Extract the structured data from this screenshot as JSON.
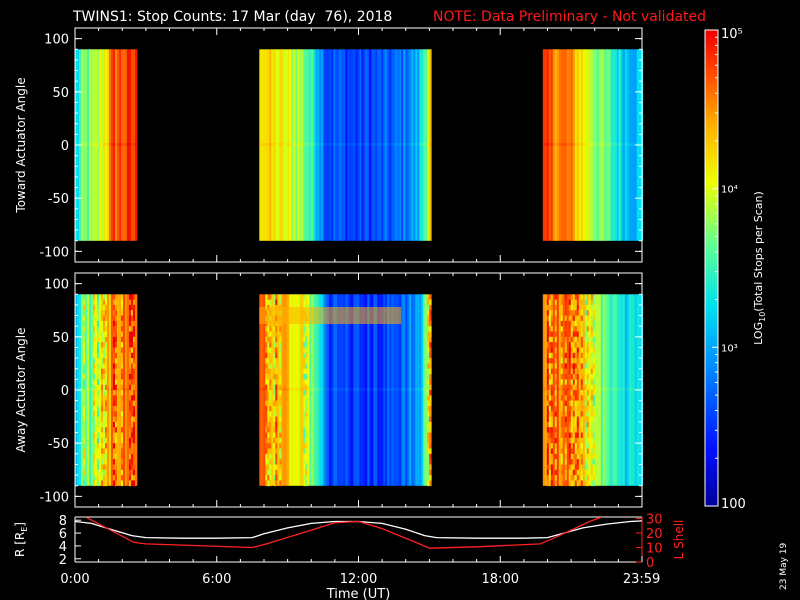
{
  "header": {
    "title": "TWINS1: Stop Counts: 17 Mar (day  76), 2018",
    "note": "NOTE: Data Preliminary - Not validated",
    "note_color": "#ff1a1a"
  },
  "stamp": "23 May 19",
  "colorbar": {
    "label_prefix": "LOG",
    "label_sub": "10",
    "label_suffix": "(Total Stops per Scan)",
    "ticks": [
      {
        "value": 100,
        "label": "100"
      },
      {
        "value": 1000,
        "label": "10³"
      },
      {
        "value": 10000,
        "label": "10⁴"
      },
      {
        "value": 100000,
        "label": "10⁵"
      }
    ],
    "range": [
      100,
      100000
    ],
    "scale": "log"
  },
  "chart_data": [
    {
      "type": "heatmap",
      "ylabel": "Toward Actuator Angle",
      "ylim": [
        -110,
        110
      ],
      "yticks": [
        100,
        50,
        0,
        -50,
        -100
      ],
      "xlim": [
        0,
        24
      ],
      "data_y_range": [
        -90,
        90
      ],
      "segments": [
        {
          "start": 0.0,
          "end": 2.6,
          "profile": [
            [
              0.0,
              0.4
            ],
            [
              0.3,
              0.55
            ],
            [
              0.8,
              0.58
            ],
            [
              1.3,
              0.75
            ],
            [
              1.6,
              0.9
            ],
            [
              2.6,
              0.92
            ]
          ]
        },
        {
          "start": 7.8,
          "end": 15.0,
          "profile": [
            [
              7.8,
              0.78
            ],
            [
              8.4,
              0.7
            ],
            [
              9.5,
              0.62
            ],
            [
              10.2,
              0.42
            ],
            [
              10.6,
              0.22
            ],
            [
              12.0,
              0.18
            ],
            [
              13.5,
              0.22
            ],
            [
              14.5,
              0.35
            ],
            [
              15.0,
              0.75
            ]
          ]
        },
        {
          "start": 19.8,
          "end": 24.0,
          "profile": [
            [
              19.8,
              0.88
            ],
            [
              20.8,
              0.85
            ],
            [
              21.5,
              0.7
            ],
            [
              22.3,
              0.55
            ],
            [
              23.2,
              0.4
            ],
            [
              24.0,
              0.38
            ]
          ]
        }
      ],
      "colorbar_label": "LOG10(Total Stops per Scan)"
    },
    {
      "type": "heatmap",
      "ylabel": "Away Actuator Angle",
      "ylim": [
        -110,
        110
      ],
      "yticks": [
        100,
        50,
        0,
        -50,
        -100
      ],
      "xlim": [
        0,
        24
      ],
      "data_y_range": [
        -90,
        90
      ],
      "segments": [
        {
          "start": 0.0,
          "end": 2.6,
          "profile": [
            [
              0.0,
              0.38
            ],
            [
              0.3,
              0.55
            ],
            [
              0.8,
              0.6
            ],
            [
              1.4,
              0.82
            ],
            [
              1.8,
              0.88
            ],
            [
              2.6,
              0.9
            ]
          ]
        },
        {
          "start": 7.8,
          "end": 15.0,
          "profile": [
            [
              7.8,
              0.85
            ],
            [
              8.5,
              0.78
            ],
            [
              9.5,
              0.72
            ],
            [
              10.3,
              0.45
            ],
            [
              10.7,
              0.2
            ],
            [
              12.0,
              0.16
            ],
            [
              13.5,
              0.2
            ],
            [
              14.6,
              0.35
            ],
            [
              15.0,
              0.8
            ]
          ]
        },
        {
          "start": 19.8,
          "end": 24.0,
          "profile": [
            [
              19.8,
              0.88
            ],
            [
              20.8,
              0.86
            ],
            [
              21.6,
              0.72
            ],
            [
              22.4,
              0.55
            ],
            [
              23.2,
              0.42
            ],
            [
              24.0,
              0.38
            ]
          ]
        }
      ],
      "colorbar_label": "LOG10(Total Stops per Scan)"
    },
    {
      "type": "line",
      "xlabel": "Time (UT)",
      "x_ticks": [
        {
          "value": 0,
          "label": "0:00"
        },
        {
          "value": 6,
          "label": "6:00"
        },
        {
          "value": 12,
          "label": "12:00"
        },
        {
          "value": 18,
          "label": "18:00"
        },
        {
          "value": 23.983,
          "label": "23:59"
        }
      ],
      "xlim": [
        0,
        24
      ],
      "left_axis": {
        "label": "R [R",
        "label_sub": "E",
        "label_end": "]",
        "ylim": [
          1.5,
          8.5
        ],
        "ticks": [
          2,
          4,
          6,
          8
        ],
        "color": "#ffffff"
      },
      "right_axis": {
        "label": "L Shell",
        "ylim": [
          0,
          31
        ],
        "ticks": [
          0,
          10,
          20,
          30
        ],
        "tick_labels": [
          "0",
          "10",
          "20",
          "30"
        ],
        "color": "#ff2020"
      },
      "series": [
        {
          "axis": "left",
          "color": "#ffffff",
          "x": [
            0.0,
            0.7,
            1.5,
            2.4,
            3.0,
            4.5,
            6.0,
            7.5,
            8.0,
            9.0,
            10.0,
            11.0,
            12.0,
            13.0,
            14.0,
            14.8,
            15.3,
            17.0,
            19.0,
            20.0,
            20.5,
            21.5,
            22.5,
            23.5,
            24.0
          ],
          "y": [
            7.8,
            7.5,
            6.6,
            5.6,
            5.3,
            5.2,
            5.2,
            5.3,
            5.9,
            6.8,
            7.5,
            7.8,
            7.8,
            7.5,
            6.6,
            5.6,
            5.3,
            5.2,
            5.2,
            5.3,
            5.8,
            6.8,
            7.4,
            7.8,
            7.9
          ]
        },
        {
          "axis": "right",
          "color": "#ff2020",
          "x": [
            0.5,
            1.5,
            2.5,
            3.0,
            7.5,
            8.0,
            10.0,
            11.0,
            12.0,
            13.0,
            14.5,
            15.0,
            17.0,
            19.7,
            20.2,
            21.0,
            21.8,
            22.3
          ],
          "y": [
            30.5,
            22.0,
            13.5,
            12.5,
            10.0,
            12.0,
            22.0,
            27.0,
            28.0,
            23.0,
            13.0,
            9.5,
            10.5,
            12.5,
            16.0,
            22.0,
            28.0,
            31.0
          ]
        }
      ]
    }
  ]
}
